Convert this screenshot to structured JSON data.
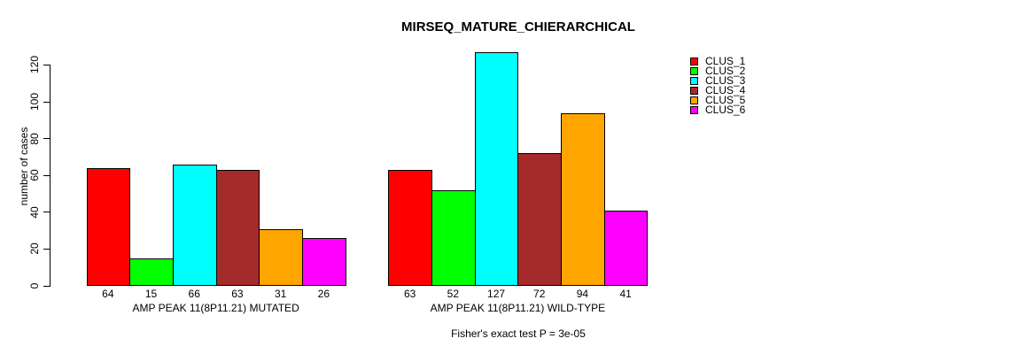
{
  "chart_data": {
    "type": "bar",
    "title": "MIRSEQ_MATURE_CHIERARCHICAL",
    "ylabel": "number of cases",
    "xlabel": "",
    "categories": [
      "AMP PEAK 11(8P11.21) MUTATED",
      "AMP PEAK 11(8P11.21) WILD-TYPE"
    ],
    "series": [
      {
        "name": "CLUS_1",
        "color": "#FF0000",
        "values": [
          64,
          63
        ]
      },
      {
        "name": "CLUS_2",
        "color": "#00FF00",
        "values": [
          15,
          52
        ]
      },
      {
        "name": "CLUS_3",
        "color": "#00FFFF",
        "values": [
          66,
          127
        ]
      },
      {
        "name": "CLUS_4",
        "color": "#A52A2A",
        "values": [
          63,
          72
        ]
      },
      {
        "name": "CLUS_5",
        "color": "#FFA500",
        "values": [
          31,
          94
        ]
      },
      {
        "name": "CLUS_6",
        "color": "#FF00FF",
        "values": [
          26,
          41
        ]
      }
    ],
    "bar_value_labels": true,
    "yticks": [
      0,
      20,
      40,
      60,
      80,
      100,
      120
    ],
    "ylim": [
      0,
      130
    ],
    "grid": false,
    "legend_position": "top-right",
    "annotation": "Fisher's exact test P = 3e-05"
  }
}
